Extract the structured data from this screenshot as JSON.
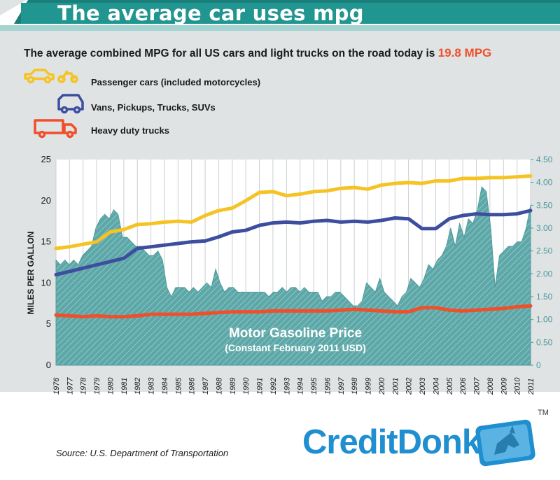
{
  "title": "The average car uses mpg",
  "headline_prefix": "The average combined MPG for all US cars and light trucks on the road today is ",
  "headline_value": "19.8 MPG",
  "legend": [
    {
      "label": "Passenger cars (included motorcycles)",
      "color": "#f6c325",
      "icon": "car-motorcycle-icon"
    },
    {
      "label": "Vans, Pickups, Trucks, SUVs",
      "color": "#3d4e9f",
      "icon": "van-icon"
    },
    {
      "label": "Heavy duty trucks",
      "color": "#f04f2a",
      "icon": "truck-icon"
    }
  ],
  "source": "Source: U.S. Department of Transportation",
  "logo": "CreditDonkey",
  "tm": "TM",
  "chart_data": {
    "type": "line",
    "ylabel": "MILES PER GALLON",
    "ylim": [
      0,
      25
    ],
    "yticks": [
      "0",
      "5",
      "10",
      "15",
      "20",
      "25"
    ],
    "y2lim": [
      0,
      4.5
    ],
    "y2ticks": [
      "0",
      "0.50",
      "1.00",
      "1.50",
      "2.00",
      "2.50",
      "3.00",
      "3.50",
      "4.00",
      "4.50"
    ],
    "x": [
      "1976",
      "1977",
      "1978",
      "1979",
      "1980",
      "1981",
      "1982",
      "1983",
      "1984",
      "1985",
      "1986",
      "1987",
      "1988",
      "1989",
      "1990",
      "1991",
      "1992",
      "1993",
      "1994",
      "1995",
      "1996",
      "1997",
      "1998",
      "1999",
      "2000",
      "2001",
      "2002",
      "2003",
      "2004",
      "2005",
      "2006",
      "2007",
      "2008",
      "2009",
      "2010",
      "2011"
    ],
    "series": [
      {
        "name": "Passenger cars (included motorcycles)",
        "color": "#f6c325",
        "values": [
          14.2,
          14.4,
          14.7,
          15.0,
          16.2,
          16.5,
          17.1,
          17.2,
          17.4,
          17.5,
          17.4,
          18.2,
          18.8,
          19.1,
          20.0,
          21.0,
          21.1,
          20.6,
          20.8,
          21.1,
          21.2,
          21.5,
          21.6,
          21.4,
          21.9,
          22.1,
          22.2,
          22.1,
          22.4,
          22.4,
          22.7,
          22.7,
          22.8,
          22.8,
          22.9,
          23.0
        ]
      },
      {
        "name": "Vans, Pickups, Trucks, SUVs",
        "color": "#3d4e9f",
        "values": [
          11.0,
          11.4,
          11.8,
          12.2,
          12.6,
          13.0,
          14.2,
          14.4,
          14.6,
          14.8,
          15.0,
          15.1,
          15.6,
          16.2,
          16.4,
          17.0,
          17.3,
          17.4,
          17.3,
          17.5,
          17.6,
          17.4,
          17.5,
          17.4,
          17.6,
          17.9,
          17.8,
          16.6,
          16.6,
          17.8,
          18.2,
          18.4,
          18.3,
          18.3,
          18.4,
          18.8
        ]
      },
      {
        "name": "Heavy duty trucks",
        "color": "#f04f2a",
        "values": [
          6.1,
          6.0,
          5.9,
          6.0,
          5.9,
          5.9,
          6.0,
          6.2,
          6.2,
          6.2,
          6.2,
          6.3,
          6.4,
          6.5,
          6.5,
          6.5,
          6.6,
          6.6,
          6.6,
          6.6,
          6.6,
          6.7,
          6.8,
          6.7,
          6.6,
          6.5,
          6.5,
          7.0,
          7.0,
          6.7,
          6.6,
          6.7,
          6.8,
          6.9,
          7.1,
          7.2
        ]
      }
    ],
    "area": {
      "label": "Motor Gasoline Price",
      "sublabel": "(Constant February 2011 USD)",
      "axis": "right",
      "color": "#6aadad",
      "x_start": 1976,
      "x_end": 2011,
      "values": [
        2.3,
        2.2,
        2.3,
        2.2,
        2.3,
        2.2,
        2.4,
        2.5,
        2.6,
        3.0,
        3.2,
        3.3,
        3.2,
        3.4,
        3.3,
        2.8,
        2.8,
        2.7,
        2.6,
        2.6,
        2.5,
        2.4,
        2.4,
        2.5,
        2.3,
        1.7,
        1.5,
        1.7,
        1.7,
        1.7,
        1.6,
        1.7,
        1.6,
        1.7,
        1.8,
        1.7,
        2.1,
        1.8,
        1.6,
        1.7,
        1.7,
        1.6,
        1.6,
        1.6,
        1.6,
        1.6,
        1.6,
        1.6,
        1.5,
        1.6,
        1.6,
        1.7,
        1.6,
        1.7,
        1.7,
        1.6,
        1.7,
        1.6,
        1.6,
        1.6,
        1.4,
        1.5,
        1.5,
        1.6,
        1.6,
        1.5,
        1.4,
        1.3,
        1.3,
        1.4,
        1.8,
        1.7,
        1.6,
        1.9,
        1.6,
        1.5,
        1.4,
        1.3,
        1.5,
        1.6,
        1.9,
        1.8,
        1.7,
        1.9,
        2.2,
        2.1,
        2.3,
        2.4,
        2.6,
        3.0,
        2.6,
        3.1,
        2.8,
        3.2,
        3.1,
        3.4,
        3.9,
        3.8,
        3.0,
        1.7,
        2.4,
        2.5,
        2.6,
        2.6,
        2.7,
        2.7,
        3.0,
        3.5
      ]
    }
  }
}
